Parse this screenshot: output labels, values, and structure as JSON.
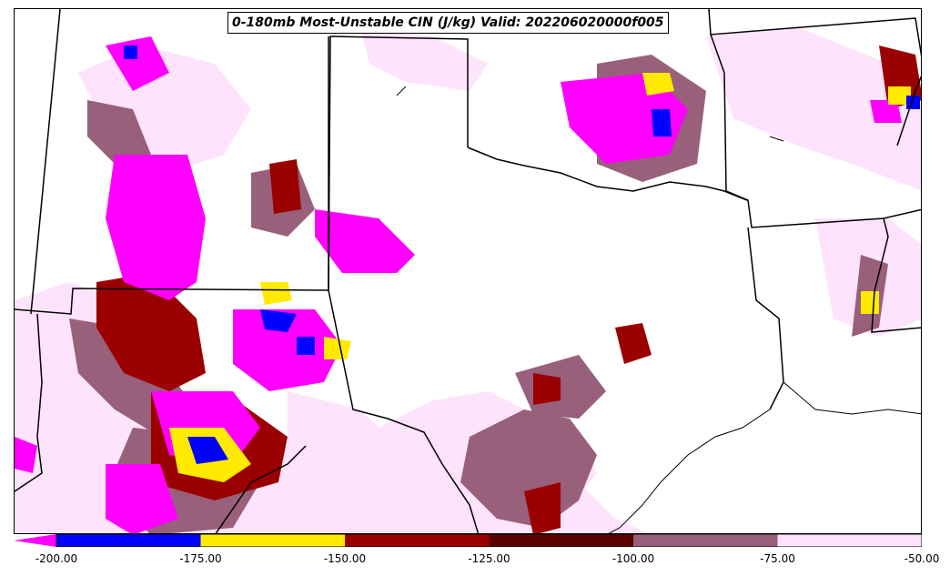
{
  "title": "0-180mb Most-Unstable CIN (J/kg) Valid: 202206020000f005",
  "colorbar": {
    "min": -200,
    "max": -50,
    "tick_labels": [
      "-200.00",
      "-175.00",
      "-150.00",
      "-125.00",
      "-100.00",
      "-75.00",
      "-50.00"
    ],
    "bins": [
      {
        "from": -200,
        "to": -175,
        "color": "#0000ff"
      },
      {
        "from": -175,
        "to": -150,
        "color": "#ffea00"
      },
      {
        "from": -150,
        "to": -125,
        "color": "#9b0000"
      },
      {
        "from": -125,
        "to": -100,
        "color": "#5a0000"
      },
      {
        "from": -100,
        "to": -75,
        "color": "#98607a"
      },
      {
        "from": -75,
        "to": -50,
        "color": "#fde3fb"
      }
    ],
    "under_color": "#ff00ff"
  }
}
